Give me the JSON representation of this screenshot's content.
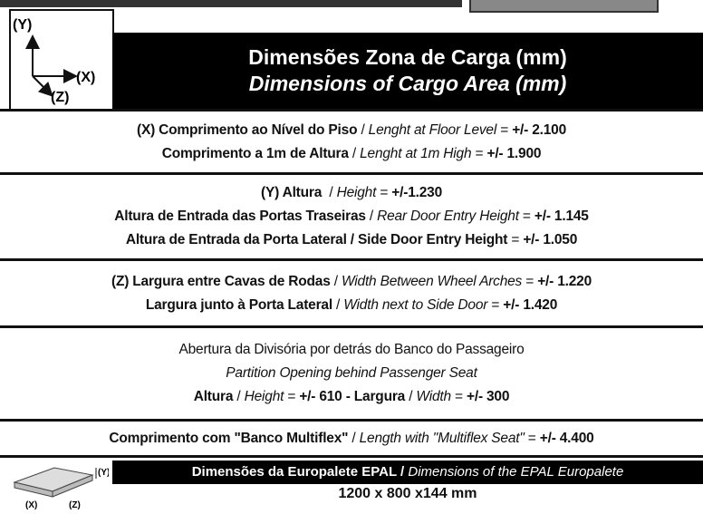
{
  "axis_icon": {
    "y": "(Y)",
    "x": "(X)",
    "z": "(Z)"
  },
  "header": {
    "title": "Dimensões Zona de Carga (mm)",
    "subtitle": "Dimensions of Cargo Area (mm)"
  },
  "rows": [
    [
      [
        {
          "bold": "(X) Comprimento ao Nível do Piso"
        },
        {
          "normal": " / "
        },
        {
          "italic": "Lenght at Floor Level"
        },
        {
          "normal": " = "
        },
        {
          "bold": "+/- 2.100"
        }
      ],
      [
        {
          "bold": "Comprimento a 1m de Altura"
        },
        {
          "normal": " / "
        },
        {
          "italic": "Lenght at 1m High"
        },
        {
          "normal": " = "
        },
        {
          "bold": "+/- 1.900"
        }
      ]
    ],
    [
      [
        {
          "bold": "(Y) Altura"
        },
        {
          "normal": "  / "
        },
        {
          "italic": "Height"
        },
        {
          "normal": " = "
        },
        {
          "bold": "+/-1.230"
        }
      ],
      [
        {
          "bold": "Altura de Entrada das Portas Traseiras"
        },
        {
          "normal": " / "
        },
        {
          "italic": "Rear Door Entry Height"
        },
        {
          "normal": " = "
        },
        {
          "bold": "+/- 1.145"
        }
      ],
      [
        {
          "bold": "Altura de Entrada da Porta Lateral / Side Door Entry Height"
        },
        {
          "normal": " = "
        },
        {
          "bold": "+/- 1.050"
        }
      ]
    ],
    [
      [
        {
          "bold": "(Z) Largura entre Cavas de Rodas"
        },
        {
          "normal": " / "
        },
        {
          "italic": "Width Between Wheel Arches"
        },
        {
          "normal": " = "
        },
        {
          "bold": "+/- 1.220"
        }
      ],
      [
        {
          "bold": "Largura junto à Porta Lateral"
        },
        {
          "normal": " / "
        },
        {
          "italic": "Width next to Side Door"
        },
        {
          "normal": " = "
        },
        {
          "bold": "+/- 1.420"
        }
      ]
    ],
    [
      [
        {
          "normal": "Abertura da Divisória por detrás do Banco do Passageiro"
        }
      ],
      [
        {
          "italic": "Partition Opening behind Passenger Seat"
        }
      ],
      [
        {
          "bold": "Altura"
        },
        {
          "normal": " / "
        },
        {
          "italic": "Height"
        },
        {
          "normal": " = "
        },
        {
          "bold": "+/- 610 - Largura"
        },
        {
          "normal": " / "
        },
        {
          "italic": "Width"
        },
        {
          "normal": " = "
        },
        {
          "bold": "+/- 300"
        }
      ]
    ],
    [
      [
        {
          "bold": "Comprimento com \"Banco Multiflex\""
        },
        {
          "normal": " / "
        },
        {
          "italic": "Length with \"Multiflex Seat\""
        },
        {
          "normal": " = "
        },
        {
          "bold": "+/- 4.400"
        }
      ]
    ]
  ],
  "footer": {
    "icon": {
      "y": "(Y)",
      "x": "(X)",
      "z": "(Z)"
    },
    "band": [
      {
        "normal": "Dimensões da Europalete EPAL / "
      },
      {
        "italic": "Dimensions of the EPAL Europalete"
      }
    ],
    "size": "1200 x 800 x144 mm"
  }
}
